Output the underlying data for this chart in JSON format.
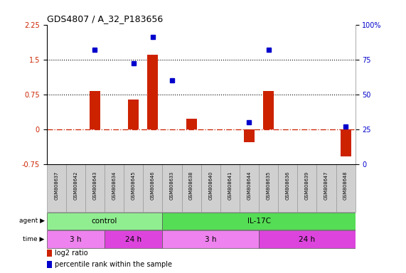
{
  "title": "GDS4807 / A_32_P183656",
  "samples": [
    "GSM808637",
    "GSM808642",
    "GSM808643",
    "GSM808634",
    "GSM808645",
    "GSM808646",
    "GSM808633",
    "GSM808638",
    "GSM808640",
    "GSM808641",
    "GSM808644",
    "GSM808635",
    "GSM808636",
    "GSM808639",
    "GSM808647",
    "GSM808648"
  ],
  "log2_ratio": [
    0.0,
    0.0,
    0.82,
    0.0,
    0.63,
    1.6,
    0.0,
    0.22,
    0.0,
    0.0,
    -0.28,
    0.82,
    0.0,
    0.0,
    0.0,
    -0.58
  ],
  "percentile": [
    null,
    null,
    82,
    null,
    72,
    91,
    60,
    null,
    null,
    null,
    30,
    82,
    null,
    null,
    null,
    27
  ],
  "agent_groups": [
    {
      "label": "control",
      "start": 0,
      "end": 6,
      "color": "#90EE90"
    },
    {
      "label": "IL-17C",
      "start": 6,
      "end": 16,
      "color": "#55DD55"
    }
  ],
  "time_groups": [
    {
      "label": "3 h",
      "start": 0,
      "end": 3,
      "color": "#EE82EE"
    },
    {
      "label": "24 h",
      "start": 3,
      "end": 6,
      "color": "#DD44DD"
    },
    {
      "label": "3 h",
      "start": 6,
      "end": 11,
      "color": "#EE82EE"
    },
    {
      "label": "24 h",
      "start": 11,
      "end": 16,
      "color": "#DD44DD"
    }
  ],
  "ylim_left": [
    -0.75,
    2.25
  ],
  "ylim_right": [
    0,
    100
  ],
  "yticks_left": [
    -0.75,
    0,
    0.75,
    1.5,
    2.25
  ],
  "yticks_right": [
    0,
    25,
    50,
    75,
    100
  ],
  "hlines": [
    0.75,
    1.5
  ],
  "bar_color": "#CC2200",
  "dot_color": "#0000CC",
  "zero_line_color": "#CC2200",
  "grid_line_color": "#000000",
  "bg_color": "#FFFFFF",
  "sample_box_color": "#D0D0D0",
  "sample_box_edge": "#999999",
  "legend_items": [
    {
      "color": "#CC2200",
      "label": "log2 ratio"
    },
    {
      "color": "#0000CC",
      "label": "percentile rank within the sample"
    }
  ]
}
